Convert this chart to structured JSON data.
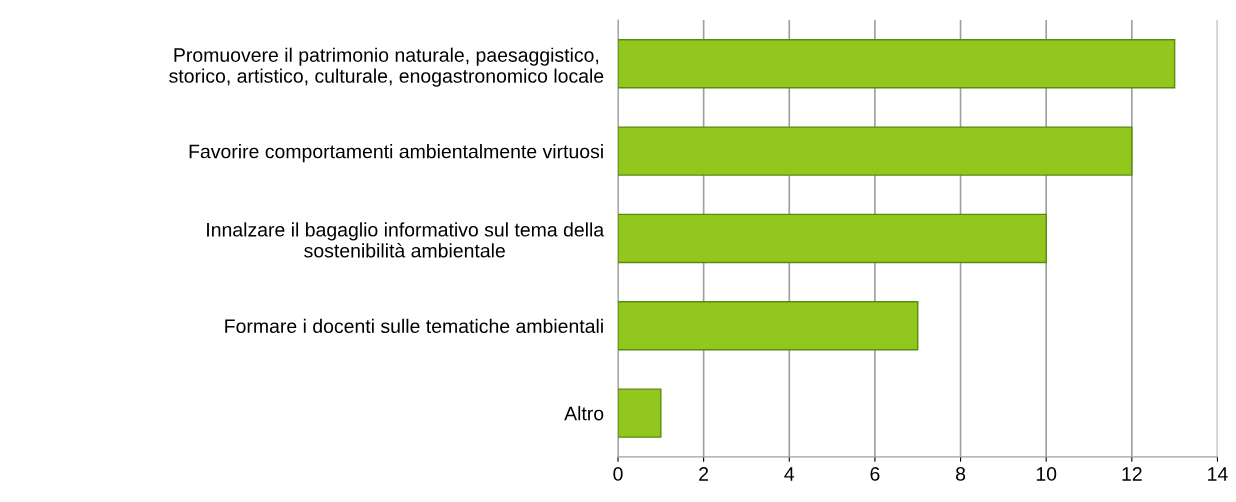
{
  "chart_data": {
    "type": "bar",
    "orientation": "horizontal",
    "categories": [
      "Promuovere il patrimonio naturale, paesaggistico,\nstorico, artistico, culturale, enogastronomico locale",
      "Favorire comportamenti ambientalmente virtuosi",
      "Innalzare il bagaglio informativo sul tema della\nsostenibilità ambientale",
      "Formare i docenti sulle tematiche ambientali",
      "Altro"
    ],
    "values": [
      13,
      12,
      10,
      7,
      1
    ],
    "color": "#92c81e",
    "xlim": [
      0,
      14
    ],
    "xticks": [
      0,
      2,
      4,
      6,
      8,
      10,
      12,
      14
    ],
    "grid": "x"
  }
}
